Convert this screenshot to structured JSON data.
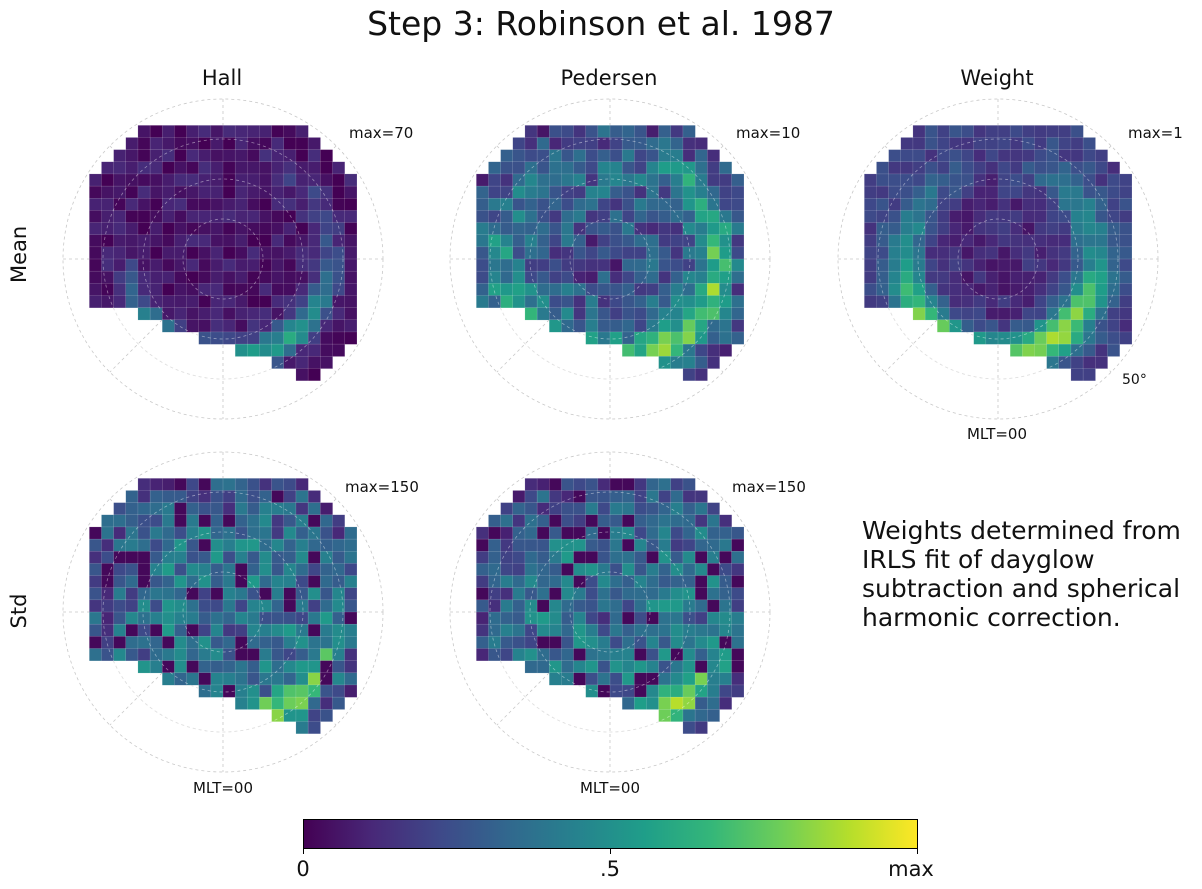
{
  "figure": {
    "title": "Step 3: Robinson et al. 1987",
    "note": "Weights determined from IRLS fit of dayglow subtraction and spherical harmonic correction."
  },
  "columns": [
    "Hall",
    "Pedersen",
    "Weight"
  ],
  "rows": [
    "Mean",
    "Std"
  ],
  "colormap": {
    "name": "viridis",
    "stops": [
      "#440154",
      "#482878",
      "#3e4989",
      "#31688e",
      "#26828e",
      "#1f9e89",
      "#35b779",
      "#6ece58",
      "#b5de2b",
      "#fde725"
    ],
    "tick_labels": [
      "0",
      ".5",
      "max"
    ]
  },
  "polar_axes": {
    "mlt_label": "MLT=00",
    "lat_label": "50°"
  },
  "chart_data": [
    {
      "type": "heatmap",
      "row": "Mean",
      "column": "Hall",
      "max_label": "max=70",
      "pattern": "hall"
    },
    {
      "type": "heatmap",
      "row": "Mean",
      "column": "Pedersen",
      "max_label": "max=10",
      "pattern": "pedersen"
    },
    {
      "type": "heatmap",
      "row": "Mean",
      "column": "Weight",
      "max_label": "max=1",
      "pattern": "weight"
    },
    {
      "type": "heatmap",
      "row": "Std",
      "column": "Hall",
      "max_label": "max=150",
      "pattern": "std"
    },
    {
      "type": "heatmap",
      "row": "Std",
      "column": "Pedersen",
      "max_label": "max=150",
      "pattern": "std"
    }
  ]
}
